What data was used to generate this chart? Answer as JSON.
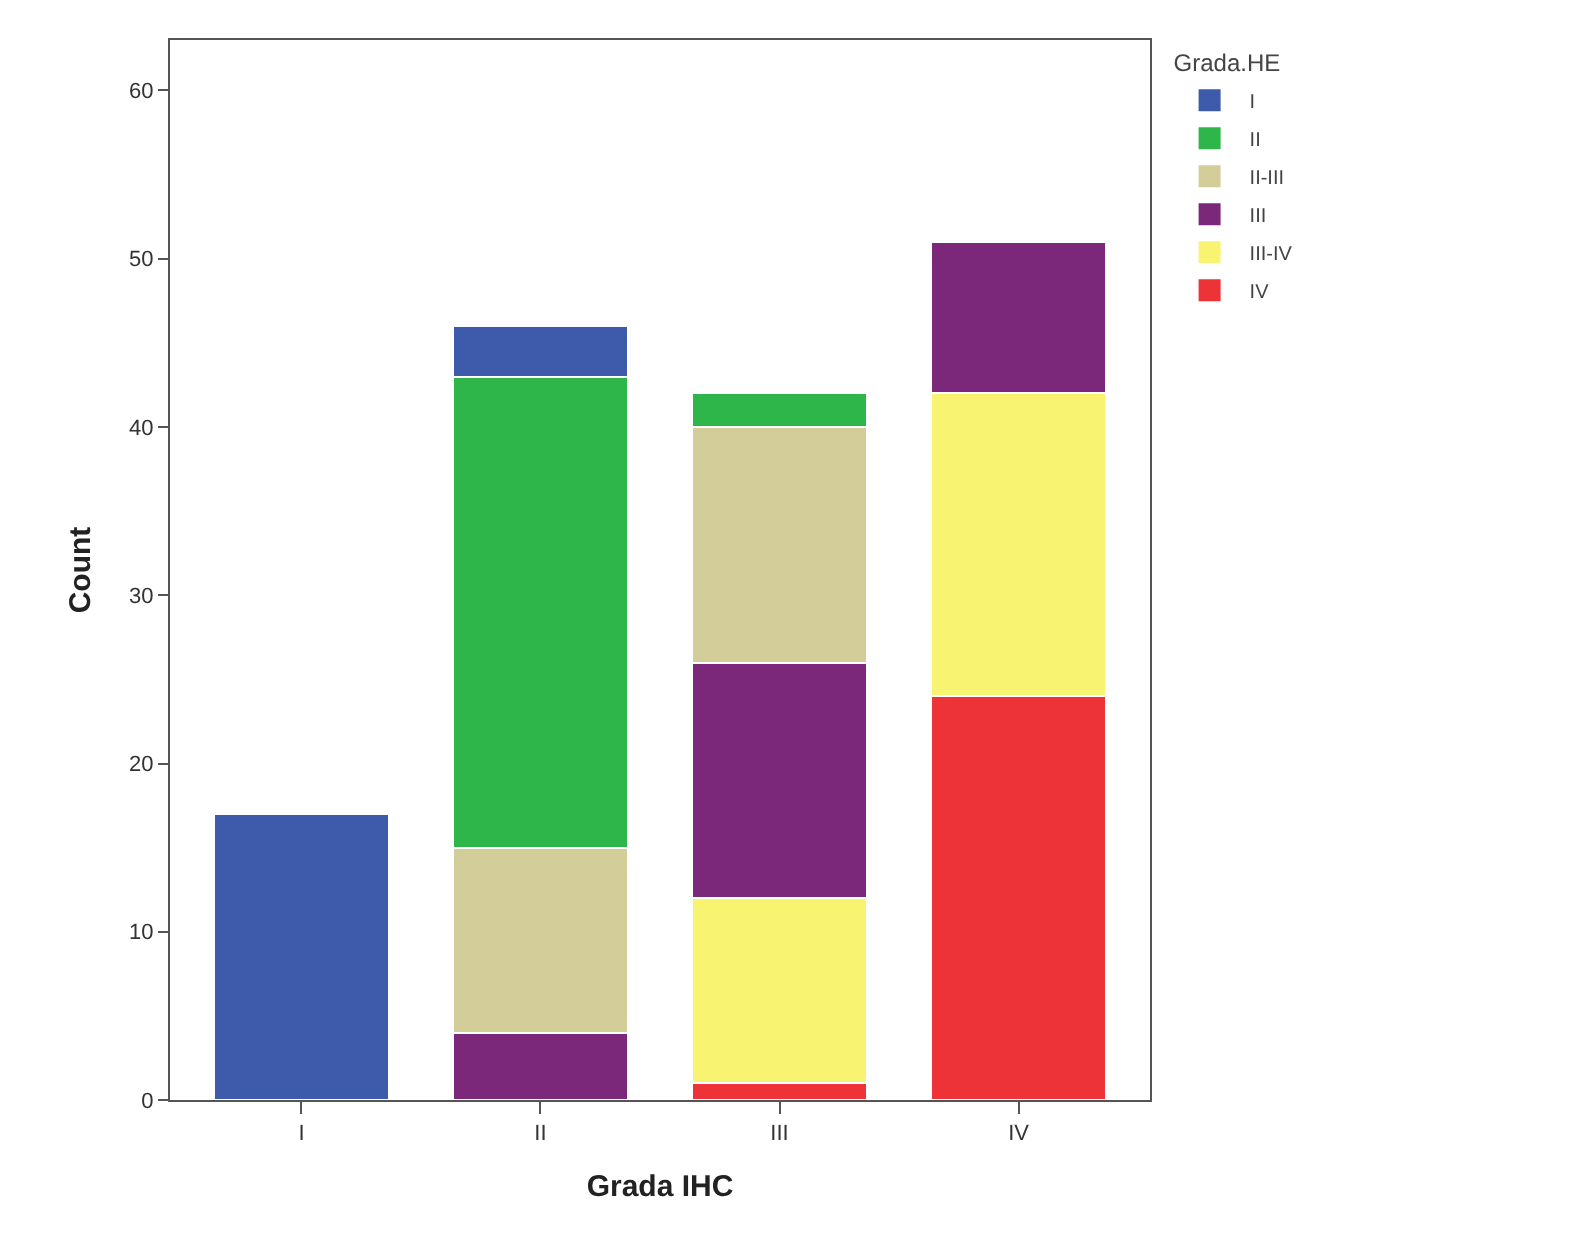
{
  "chart_data": {
    "type": "bar",
    "stacked": true,
    "xlabel": "Grada IHC",
    "ylabel": "Count",
    "legend_title": "Grada.HE",
    "categories": [
      "I",
      "II",
      "III",
      "IV"
    ],
    "series": [
      {
        "name": "IV",
        "color": "#ee3338",
        "values": [
          null,
          null,
          1,
          24
        ]
      },
      {
        "name": "III-IV",
        "color": "#f8f472",
        "values": [
          null,
          null,
          11,
          18
        ]
      },
      {
        "name": "III",
        "color": "#7c287a",
        "values": [
          null,
          4,
          14,
          9
        ]
      },
      {
        "name": "II-III",
        "color": "#d3cd99",
        "values": [
          null,
          11,
          14,
          null
        ]
      },
      {
        "name": "II",
        "color": "#2fb64a",
        "values": [
          null,
          28,
          2,
          null
        ]
      },
      {
        "name": "I",
        "color": "#3d5aab",
        "values": [
          17,
          3,
          null,
          null
        ]
      }
    ],
    "ylim": [
      0,
      63
    ],
    "yticks": [
      0,
      10,
      20,
      30,
      40,
      50,
      60
    ],
    "legend": "top right"
  }
}
